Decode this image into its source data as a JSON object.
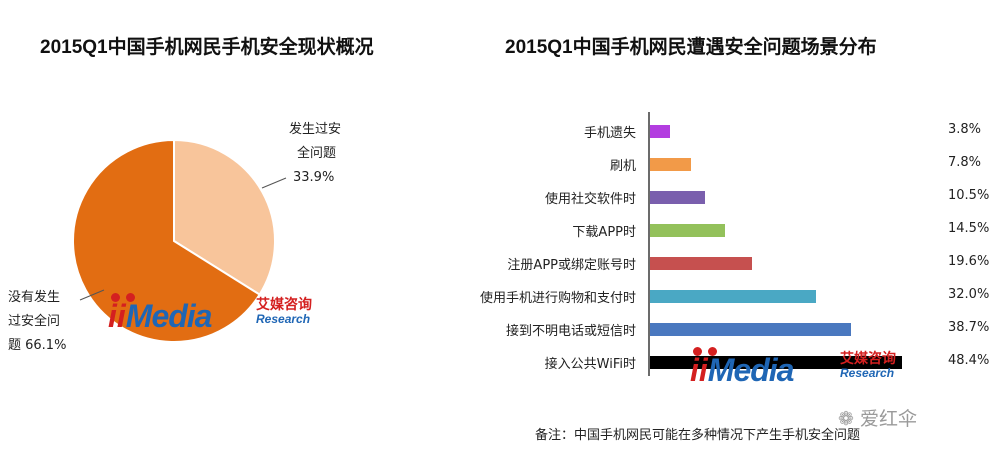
{
  "chart_data": [
    {
      "type": "pie",
      "title": "2015Q1中国手机网民手机安全现状概况",
      "slices": [
        {
          "label_lines": [
            "发生过安",
            "全问题",
            "33.9%"
          ],
          "value": 33.9,
          "color": "#f8c59b"
        },
        {
          "label_lines": [
            "没有发生",
            "过安全问",
            "题 66.1%"
          ],
          "value": 66.1,
          "color": "#e26d12"
        }
      ]
    },
    {
      "type": "bar",
      "orientation": "horizontal",
      "title": "2015Q1中国手机网民遭遇安全问题场景分布",
      "xlim": [
        0,
        50
      ],
      "categories": [
        "手机遗失",
        "刷机",
        "使用社交软件时",
        "下载APP时",
        "注册APP或绑定账号时",
        "使用手机进行购物和支付时",
        "接到不明电话或短信时",
        "接入公共WiFi时"
      ],
      "values": [
        3.8,
        7.8,
        10.5,
        14.5,
        19.6,
        32.0,
        38.7,
        48.4
      ],
      "value_labels": [
        "3.8%",
        "7.8%",
        "10.5%",
        "14.5%",
        "19.6%",
        "32.0%",
        "38.7%",
        "48.4%"
      ],
      "colors": [
        "#b33de0",
        "#f29a48",
        "#7a5fad",
        "#93c15b",
        "#c6504f",
        "#4aa8c4",
        "#4a78bf",
        "#000000"
      ]
    }
  ],
  "logo": {
    "word": "Media",
    "cn": "艾媒咨询",
    "en": "Research"
  },
  "note": "备注：中国手机网民可能在多种情况下产生手机安全问题",
  "watermark": "爱红伞"
}
